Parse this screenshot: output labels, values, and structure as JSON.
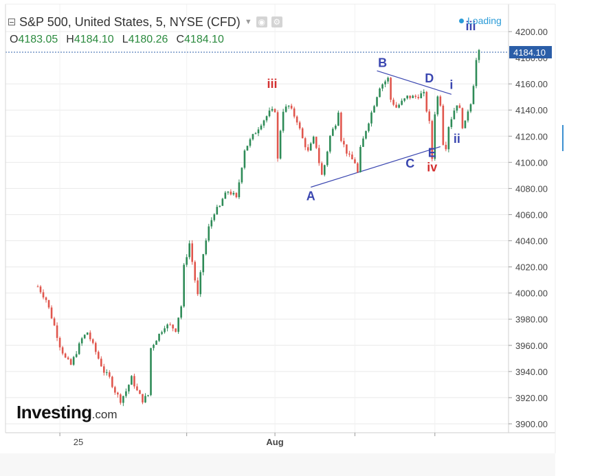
{
  "header": {
    "title": "S&P 500, United States, 5, NYSE (CFD)",
    "ohlc": [
      {
        "key": "O",
        "value": "4183.05"
      },
      {
        "key": "H",
        "value": "4184.10"
      },
      {
        "key": "L",
        "value": "4180.26"
      },
      {
        "key": "C",
        "value": "4184.10"
      }
    ],
    "loading": "Loading"
  },
  "logo": {
    "main": "Investing",
    "sub": ".com"
  },
  "colors": {
    "up": "#2e8b57",
    "down": "#e0564d",
    "wave_blue": "#3a46b0",
    "wave_red": "#d32f2f",
    "price_badge": "#2b5ea8",
    "grid": "#e9e9e9"
  },
  "chart_data": {
    "type": "candlestick",
    "symbol": "S&P 500",
    "last_price": "4184.10",
    "ylim": [
      3892,
      4210
    ],
    "yticks": [
      "4200.00",
      "4160.00",
      "4140.00",
      "4120.00",
      "4100.00",
      "4080.00",
      "4060.00",
      "4040.00",
      "4020.00",
      "4000.00",
      "3980.00",
      "3960.00",
      "3940.00",
      "3920.00",
      "3900.00"
    ],
    "xticks": [
      "25",
      "Aug"
    ],
    "grid": true,
    "close_path": [
      [
        0,
        4005
      ],
      [
        3,
        3995
      ],
      [
        6,
        3975
      ],
      [
        8,
        3960
      ],
      [
        10,
        3950
      ],
      [
        12,
        3945
      ],
      [
        14,
        3955
      ],
      [
        16,
        3965
      ],
      [
        18,
        3970
      ],
      [
        20,
        3960
      ],
      [
        22,
        3950
      ],
      [
        24,
        3940
      ],
      [
        26,
        3935
      ],
      [
        28,
        3925
      ],
      [
        30,
        3918
      ],
      [
        32,
        3925
      ],
      [
        34,
        3935
      ],
      [
        36,
        3925
      ],
      [
        38,
        3918
      ],
      [
        40,
        3922
      ],
      [
        41,
        3958
      ],
      [
        43,
        3965
      ],
      [
        46,
        3975
      ],
      [
        48,
        3975
      ],
      [
        50,
        3972
      ],
      [
        51,
        3982
      ],
      [
        52,
        3990
      ],
      [
        53,
        4020
      ],
      [
        55,
        4038
      ],
      [
        57,
        4010
      ],
      [
        58,
        3998
      ],
      [
        60,
        4030
      ],
      [
        62,
        4050
      ],
      [
        64,
        4062
      ],
      [
        66,
        4066
      ],
      [
        67,
        4072
      ],
      [
        69,
        4078
      ],
      [
        71,
        4075
      ],
      [
        72,
        4072
      ],
      [
        73,
        4085
      ],
      [
        75,
        4110
      ],
      [
        78,
        4120
      ],
      [
        81,
        4130
      ],
      [
        84,
        4138
      ],
      [
        86,
        4140
      ],
      [
        87,
        4102
      ],
      [
        88,
        4125
      ],
      [
        89,
        4140
      ],
      [
        91,
        4143
      ],
      [
        94,
        4132
      ],
      [
        96,
        4118
      ],
      [
        98,
        4108
      ],
      [
        100,
        4118
      ],
      [
        101,
        4112
      ],
      [
        102,
        4100
      ],
      [
        103,
        4090
      ],
      [
        104,
        4098
      ],
      [
        106,
        4120
      ],
      [
        108,
        4130
      ],
      [
        109,
        4140
      ],
      [
        110,
        4118
      ],
      [
        112,
        4108
      ],
      [
        113,
        4104
      ],
      [
        115,
        4100
      ],
      [
        116,
        4092
      ],
      [
        117,
        4110
      ],
      [
        119,
        4125
      ],
      [
        121,
        4138
      ],
      [
        124,
        4158
      ],
      [
        127,
        4164
      ],
      [
        128,
        4148
      ],
      [
        130,
        4142
      ],
      [
        132,
        4146
      ],
      [
        134,
        4150
      ],
      [
        137,
        4150
      ],
      [
        139,
        4152
      ],
      [
        140,
        4152
      ],
      [
        141,
        4140
      ],
      [
        142,
        4130
      ],
      [
        143,
        4103
      ],
      [
        144,
        4138
      ],
      [
        145,
        4150
      ],
      [
        146,
        4145
      ],
      [
        147,
        4115
      ],
      [
        148,
        4112
      ],
      [
        149,
        4128
      ],
      [
        151,
        4140
      ],
      [
        152,
        4145
      ],
      [
        153,
        4140
      ],
      [
        154,
        4128
      ],
      [
        155,
        4130
      ],
      [
        156,
        4140
      ],
      [
        157,
        4146
      ],
      [
        158,
        4160
      ],
      [
        159,
        4178
      ],
      [
        160,
        4184.1
      ]
    ],
    "annotations": [
      {
        "label": "iii",
        "color": "red",
        "x": 85,
        "y": 4157
      },
      {
        "label": "iii",
        "color": "blue",
        "x": 157,
        "y": 4201
      },
      {
        "label": "B",
        "color": "blue",
        "x": 125,
        "y": 4173
      },
      {
        "label": "D",
        "color": "blue",
        "x": 142,
        "y": 4161
      },
      {
        "label": "i",
        "color": "blue",
        "x": 150,
        "y": 4156
      },
      {
        "label": "ii",
        "color": "blue",
        "x": 152,
        "y": 4115
      },
      {
        "label": "A",
        "color": "blue",
        "x": 99,
        "y": 4071
      },
      {
        "label": "C",
        "color": "blue",
        "x": 135,
        "y": 4096
      },
      {
        "label": "E",
        "color": "blue",
        "x": 143,
        "y": 4104
      },
      {
        "label": "iv",
        "color": "red",
        "x": 143,
        "y": 4093
      }
    ],
    "trendlines": [
      {
        "from": [
          99,
          4081
        ],
        "to": [
          146,
          4112
        ]
      },
      {
        "from": [
          123,
          4170
        ],
        "to": [
          150,
          4152
        ]
      }
    ]
  }
}
